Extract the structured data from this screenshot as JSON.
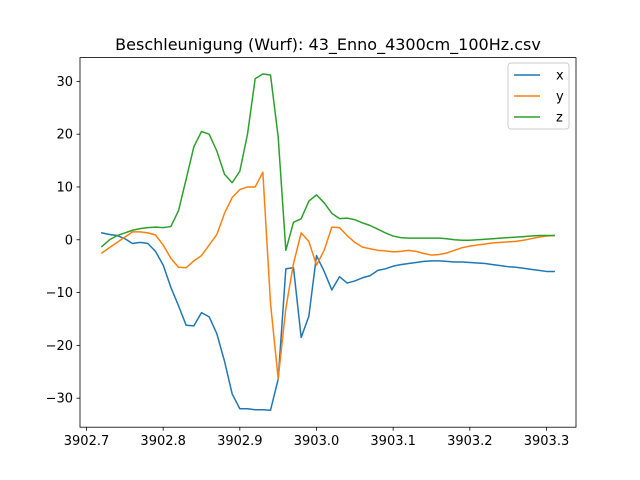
{
  "chart_data": {
    "type": "line",
    "title": "Beschleunigung (Wurf): 43_Enno_4300cm_100Hz.csv",
    "xlabel": "",
    "ylabel": "",
    "xlim": [
      3902.6915,
      3903.3385
    ],
    "ylim": [
      -35.5,
      34.5
    ],
    "xticks": [
      3902.7,
      3902.8,
      3902.9,
      3903.0,
      3903.1,
      3903.2,
      3903.3
    ],
    "xtick_labels": [
      "3902.7",
      "3902.8",
      "3902.9",
      "3903.0",
      "3903.1",
      "3903.2",
      "3903.3"
    ],
    "yticks": [
      -30,
      -20,
      -10,
      0,
      10,
      20,
      30
    ],
    "ytick_labels": [
      "−30",
      "−20",
      "−10",
      "0",
      "10",
      "20",
      "30"
    ],
    "grid": false,
    "legend_position": "top-right",
    "series": [
      {
        "name": "x",
        "color": "#1f77b4",
        "x": [
          3902.72,
          3902.73,
          3902.74,
          3902.75,
          3902.76,
          3902.77,
          3902.78,
          3902.79,
          3902.8,
          3902.81,
          3902.82,
          3902.83,
          3902.84,
          3902.85,
          3902.86,
          3902.87,
          3902.88,
          3902.89,
          3902.9,
          3902.91,
          3902.92,
          3902.93,
          3902.94,
          3902.95,
          3902.96,
          3902.97,
          3902.98,
          3902.99,
          3903.0,
          3903.01,
          3903.02,
          3903.03,
          3903.04,
          3903.05,
          3903.06,
          3903.07,
          3903.08,
          3903.09,
          3903.1,
          3903.11,
          3903.12,
          3903.13,
          3903.14,
          3903.15,
          3903.16,
          3903.17,
          3903.18,
          3903.19,
          3903.2,
          3903.21,
          3903.22,
          3903.23,
          3903.24,
          3903.25,
          3903.26,
          3903.27,
          3903.28,
          3903.29,
          3903.3,
          3903.31
        ],
        "y": [
          1.3,
          1.0,
          0.8,
          0.2,
          -0.7,
          -0.5,
          -0.7,
          -2.2,
          -4.8,
          -9.0,
          -12.5,
          -16.2,
          -16.3,
          -13.8,
          -14.6,
          -17.8,
          -23.0,
          -29.2,
          -32.0,
          -32.0,
          -32.2,
          -32.2,
          -32.3,
          -26.4,
          -5.5,
          -5.3,
          -18.5,
          -14.5,
          -3.0,
          -6.0,
          -9.5,
          -7.0,
          -8.2,
          -7.8,
          -7.2,
          -6.8,
          -5.8,
          -5.5,
          -5.0,
          -4.7,
          -4.5,
          -4.3,
          -4.1,
          -4.0,
          -4.0,
          -4.1,
          -4.2,
          -4.2,
          -4.3,
          -4.4,
          -4.5,
          -4.7,
          -4.9,
          -5.1,
          -5.2,
          -5.4,
          -5.6,
          -5.8,
          -6.0,
          -6.0
        ]
      },
      {
        "name": "y",
        "color": "#ff7f0e",
        "x": [
          3902.72,
          3902.73,
          3902.74,
          3902.75,
          3902.76,
          3902.77,
          3902.78,
          3902.79,
          3902.8,
          3902.81,
          3902.82,
          3902.83,
          3902.84,
          3902.85,
          3902.86,
          3902.87,
          3902.88,
          3902.89,
          3902.9,
          3902.91,
          3902.92,
          3902.93,
          3902.94,
          3902.95,
          3902.96,
          3902.97,
          3902.98,
          3902.99,
          3903.0,
          3903.01,
          3903.02,
          3903.03,
          3903.04,
          3903.05,
          3903.06,
          3903.07,
          3903.08,
          3903.09,
          3903.1,
          3903.11,
          3903.12,
          3903.13,
          3903.14,
          3903.15,
          3903.16,
          3903.17,
          3903.18,
          3903.19,
          3903.2,
          3903.21,
          3903.22,
          3903.23,
          3903.24,
          3903.25,
          3903.26,
          3903.27,
          3903.28,
          3903.29,
          3903.3,
          3903.31
        ],
        "y": [
          -2.5,
          -1.5,
          -0.5,
          0.5,
          1.5,
          1.5,
          1.3,
          0.9,
          -1.0,
          -3.5,
          -5.2,
          -5.3,
          -4.0,
          -3.0,
          -1.0,
          1.0,
          5.0,
          8.0,
          9.5,
          10.0,
          10.0,
          12.8,
          -12.0,
          -26.3,
          -13.0,
          -4.5,
          1.3,
          -0.3,
          -4.8,
          -2.0,
          2.4,
          2.3,
          0.8,
          -0.5,
          -1.4,
          -1.7,
          -2.0,
          -2.1,
          -2.3,
          -2.2,
          -2.0,
          -2.2,
          -2.6,
          -2.9,
          -2.8,
          -2.5,
          -2.0,
          -1.5,
          -1.2,
          -1.0,
          -0.8,
          -0.6,
          -0.5,
          -0.4,
          -0.3,
          -0.1,
          0.2,
          0.5,
          0.7,
          0.8
        ]
      },
      {
        "name": "z",
        "color": "#2ca02c",
        "x": [
          3902.72,
          3902.73,
          3902.74,
          3902.75,
          3902.76,
          3902.77,
          3902.78,
          3902.79,
          3902.8,
          3902.81,
          3902.82,
          3902.83,
          3902.84,
          3902.85,
          3902.86,
          3902.87,
          3902.88,
          3902.89,
          3902.9,
          3902.91,
          3902.92,
          3902.93,
          3902.94,
          3902.95,
          3902.96,
          3902.97,
          3902.98,
          3902.99,
          3903.0,
          3903.01,
          3903.02,
          3903.03,
          3903.04,
          3903.05,
          3903.06,
          3903.07,
          3903.08,
          3903.09,
          3903.1,
          3903.11,
          3903.12,
          3903.13,
          3903.14,
          3903.15,
          3903.16,
          3903.17,
          3903.18,
          3903.19,
          3903.2,
          3903.21,
          3903.22,
          3903.23,
          3903.24,
          3903.25,
          3903.26,
          3903.27,
          3903.28,
          3903.29,
          3903.3,
          3903.31
        ],
        "y": [
          -1.3,
          0.0,
          0.8,
          1.3,
          1.8,
          2.1,
          2.3,
          2.4,
          2.3,
          2.5,
          5.5,
          11.5,
          17.6,
          20.5,
          20.0,
          16.8,
          12.4,
          10.8,
          13.0,
          20.0,
          30.5,
          31.4,
          31.2,
          19.5,
          -2.0,
          3.3,
          4.0,
          7.3,
          8.5,
          7.0,
          5.0,
          4.0,
          4.1,
          3.8,
          3.2,
          2.7,
          2.0,
          1.3,
          0.7,
          0.4,
          0.3,
          0.3,
          0.3,
          0.3,
          0.3,
          0.2,
          0.0,
          -0.1,
          -0.1,
          0.0,
          0.1,
          0.2,
          0.3,
          0.4,
          0.5,
          0.6,
          0.7,
          0.8,
          0.8,
          0.8
        ]
      }
    ]
  }
}
